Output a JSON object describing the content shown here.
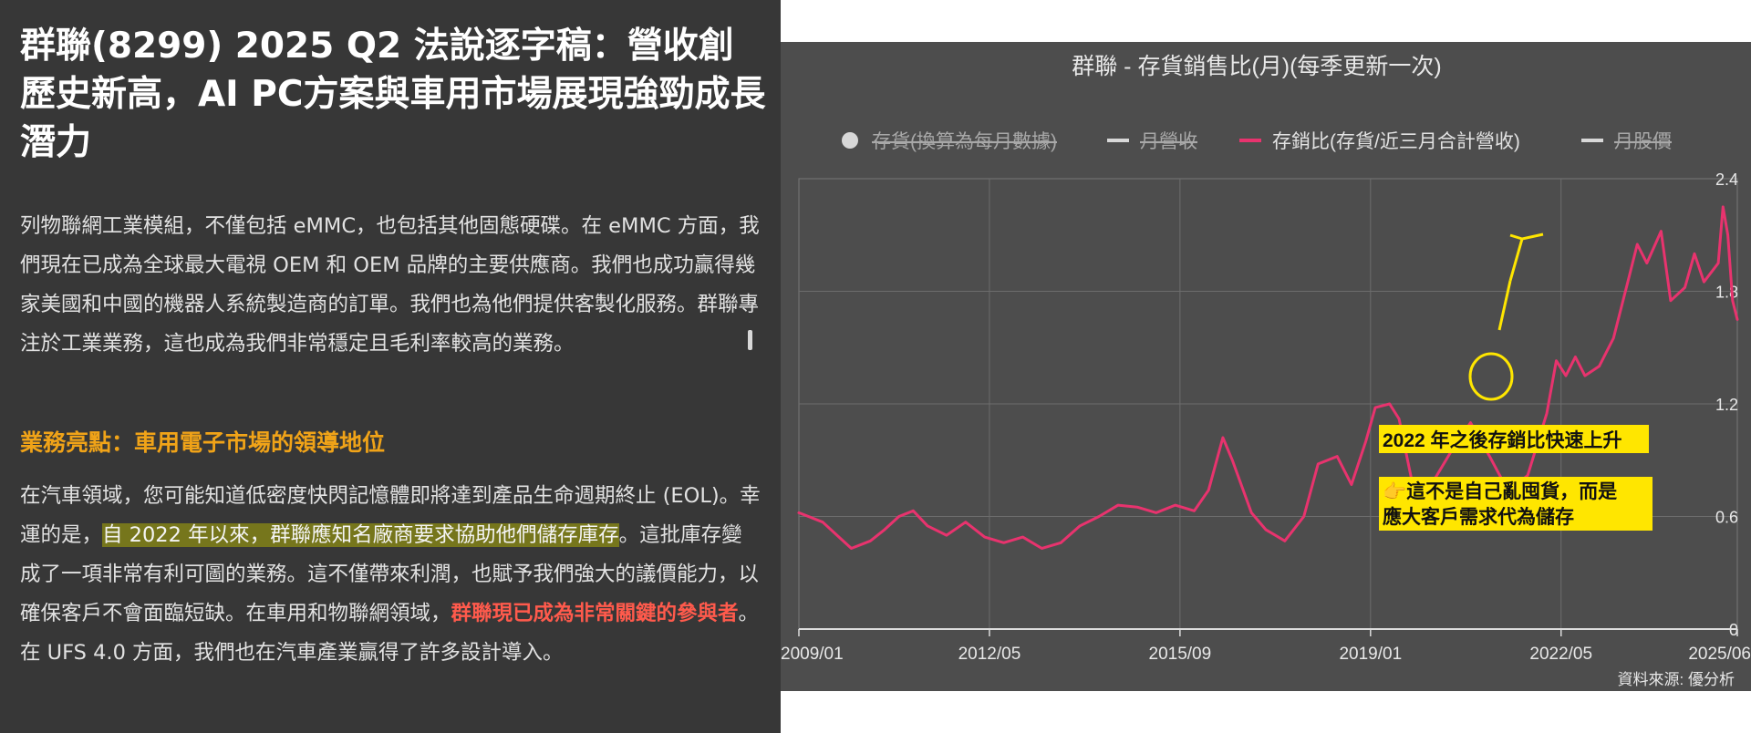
{
  "article": {
    "title": "群聯(8299) 2025 Q2 法說逐字稿：營收創歷史新高，AI PC方案與車用市場展現強勁成長潛力",
    "para1": "列物聯網工業模組，不僅包括 eMMC，也包括其他固態硬碟。在 eMMC 方面，我們現在已成為全球最大電視 OEM 和 OEM 品牌的主要供應商。我們也成功贏得幾家美國和中國的機器人系統製造商的訂單。我們也為他們提供客製化服務。群聯專注於工業業務，這也成為我們非常穩定且毛利率較高的業務。",
    "section_heading": "業務亮點：車用電子市場的領導地位",
    "para2": {
      "part1": "在汽車領域，您可能知道低密度快閃記憶體即將達到產品生命週期終止 (EOL)。幸運的是，",
      "highlight": "自 2022 年以來，群聯應知名廠商要求協助他們儲存庫存",
      "part2": "。這批庫存變成了一項非常有利可圖的業務。這不僅帶來利潤，也賦予我們強大的議價能力，以確保客戶不會面臨短缺。在車用和物聯網領域，",
      "strong": "群聯現已成為非常關鍵的參與者",
      "part3": "。在 UFS 4.0 方面，我們也在汽車產業贏得了許多設計導入。"
    }
  },
  "colors": {
    "article_bg": "#373737",
    "heading_orange": "#f0a318",
    "highlight_bg": "#76761c",
    "strong_red": "#ff5a4c",
    "chart_bg": "#4d4d4d",
    "series_pink": "#e8336e",
    "annotation_yellow": "#ffe600"
  },
  "chart_data": {
    "type": "line",
    "title": "群聯 - 存貨銷售比(月)(每季更新一次)",
    "legend": {
      "placement": "top",
      "items": [
        {
          "label": "存貨(換算為每月數據)",
          "hidden": true,
          "marker": "circle"
        },
        {
          "label": "月營收",
          "hidden": true,
          "marker": "line"
        },
        {
          "label": "存銷比(存貨/近三月合計營收)",
          "hidden": false,
          "marker": "line",
          "color": "#e8336e"
        },
        {
          "label": "月股價",
          "hidden": true,
          "marker": "line"
        }
      ]
    },
    "x_ticks": [
      "2009/01",
      "2012/05",
      "2015/09",
      "2019/01",
      "2022/05",
      "2025/06"
    ],
    "x_range": [
      "2009/01",
      "2025/06"
    ],
    "y_axis": {
      "side": "right",
      "ticks": [
        "0",
        "0.6",
        "1.2",
        "1.8",
        "2.4"
      ],
      "ylim": [
        0,
        2.4
      ]
    },
    "grid": true,
    "series": [
      {
        "name": "存銷比(存貨/近三月合計營收)",
        "color": "#e8336e",
        "points": [
          [
            "2009/01",
            0.62
          ],
          [
            "2009/06",
            0.57
          ],
          [
            "2009/09",
            0.5
          ],
          [
            "2009/12",
            0.43
          ],
          [
            "2010/04",
            0.47
          ],
          [
            "2010/07",
            0.53
          ],
          [
            "2010/10",
            0.6
          ],
          [
            "2011/01",
            0.63
          ],
          [
            "2011/04",
            0.55
          ],
          [
            "2011/08",
            0.5
          ],
          [
            "2011/12",
            0.57
          ],
          [
            "2012/04",
            0.49
          ],
          [
            "2012/08",
            0.46
          ],
          [
            "2012/12",
            0.49
          ],
          [
            "2013/04",
            0.43
          ],
          [
            "2013/08",
            0.46
          ],
          [
            "2013/12",
            0.55
          ],
          [
            "2014/04",
            0.6
          ],
          [
            "2014/08",
            0.66
          ],
          [
            "2014/12",
            0.65
          ],
          [
            "2015/04",
            0.62
          ],
          [
            "2015/08",
            0.66
          ],
          [
            "2015/12",
            0.63
          ],
          [
            "2016/03",
            0.74
          ],
          [
            "2016/06",
            1.02
          ],
          [
            "2016/08",
            0.9
          ],
          [
            "2016/12",
            0.62
          ],
          [
            "2017/03",
            0.53
          ],
          [
            "2017/07",
            0.47
          ],
          [
            "2017/11",
            0.6
          ],
          [
            "2018/02",
            0.88
          ],
          [
            "2018/06",
            0.92
          ],
          [
            "2018/09",
            0.77
          ],
          [
            "2018/12",
            1.0
          ],
          [
            "2019/02",
            1.18
          ],
          [
            "2019/05",
            1.2
          ],
          [
            "2019/07",
            1.12
          ],
          [
            "2019/10",
            0.75
          ],
          [
            "2020/02",
            0.78
          ],
          [
            "2020/06",
            0.95
          ],
          [
            "2020/10",
            1.1
          ],
          [
            "2021/02",
            0.92
          ],
          [
            "2021/06",
            0.73
          ],
          [
            "2021/10",
            0.82
          ],
          [
            "2022/02",
            1.15
          ],
          [
            "2022/04",
            1.43
          ],
          [
            "2022/06",
            1.35
          ],
          [
            "2022/08",
            1.45
          ],
          [
            "2022/10",
            1.35
          ],
          [
            "2023/01",
            1.4
          ],
          [
            "2023/04",
            1.55
          ],
          [
            "2023/07",
            1.85
          ],
          [
            "2023/09",
            2.05
          ],
          [
            "2023/11",
            1.95
          ],
          [
            "2024/02",
            2.12
          ],
          [
            "2024/04",
            1.75
          ],
          [
            "2024/07",
            1.82
          ],
          [
            "2024/09",
            2.0
          ],
          [
            "2024/11",
            1.85
          ],
          [
            "2025/02",
            1.95
          ],
          [
            "2025/03",
            2.25
          ],
          [
            "2025/04",
            2.1
          ],
          [
            "2025/05",
            1.75
          ],
          [
            "2025/06",
            1.65
          ]
        ]
      }
    ],
    "annotations": [
      "2022 年之後存銷比快速上升",
      "👉這不是自己亂囤貨，而是",
      "應大客戶需求代為儲存"
    ],
    "source": "資料來源: 優分析"
  }
}
